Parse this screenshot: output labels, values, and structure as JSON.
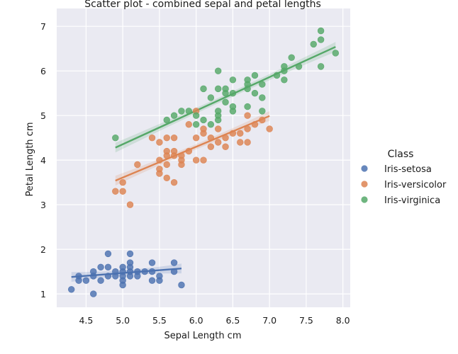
{
  "chart_data": {
    "type": "scatter",
    "title": "Scatter plot - combined sepal and petal lengths",
    "xlabel": "Sepal Length cm",
    "ylabel": "Petal Length cm",
    "xlim": [
      4.1,
      8.1
    ],
    "ylim": [
      0.7,
      7.4
    ],
    "xticks": [
      4.5,
      5.0,
      5.5,
      6.0,
      6.5,
      7.0,
      7.5,
      8.0
    ],
    "xtick_labels": [
      "4.5",
      "5.0",
      "5.5",
      "6.0",
      "6.5",
      "7.0",
      "7.5",
      "8.0"
    ],
    "yticks": [
      1,
      2,
      3,
      4,
      5,
      6,
      7
    ],
    "ytick_labels": [
      "1",
      "2",
      "3",
      "4",
      "5",
      "6",
      "7"
    ],
    "grid": true,
    "legend": {
      "title": "Class",
      "position": "right"
    },
    "series": [
      {
        "name": "Iris-setosa",
        "color": "#4c72b0",
        "points": [
          [
            4.3,
            1.1
          ],
          [
            4.4,
            1.3
          ],
          [
            4.4,
            1.4
          ],
          [
            4.5,
            1.3
          ],
          [
            4.6,
            1.0
          ],
          [
            4.6,
            1.4
          ],
          [
            4.6,
            1.5
          ],
          [
            4.7,
            1.3
          ],
          [
            4.7,
            1.6
          ],
          [
            4.8,
            1.4
          ],
          [
            4.8,
            1.6
          ],
          [
            4.8,
            1.9
          ],
          [
            4.9,
            1.4
          ],
          [
            4.9,
            1.5
          ],
          [
            5.0,
            1.2
          ],
          [
            5.0,
            1.3
          ],
          [
            5.0,
            1.4
          ],
          [
            5.0,
            1.5
          ],
          [
            5.0,
            1.6
          ],
          [
            5.1,
            1.4
          ],
          [
            5.1,
            1.5
          ],
          [
            5.1,
            1.6
          ],
          [
            5.1,
            1.7
          ],
          [
            5.1,
            1.9
          ],
          [
            5.2,
            1.4
          ],
          [
            5.2,
            1.5
          ],
          [
            5.3,
            1.5
          ],
          [
            5.4,
            1.3
          ],
          [
            5.4,
            1.5
          ],
          [
            5.4,
            1.7
          ],
          [
            5.5,
            1.3
          ],
          [
            5.5,
            1.4
          ],
          [
            5.7,
            1.5
          ],
          [
            5.7,
            1.7
          ],
          [
            5.8,
            1.2
          ]
        ],
        "fit": {
          "x": [
            4.3,
            5.8
          ],
          "y": [
            1.38,
            1.57
          ]
        }
      },
      {
        "name": "Iris-versicolor",
        "color": "#dd8452",
        "points": [
          [
            4.9,
            3.3
          ],
          [
            5.0,
            3.3
          ],
          [
            5.0,
            3.5
          ],
          [
            5.1,
            3.0
          ],
          [
            5.2,
            3.9
          ],
          [
            5.4,
            4.5
          ],
          [
            5.5,
            3.7
          ],
          [
            5.5,
            3.8
          ],
          [
            5.5,
            4.0
          ],
          [
            5.5,
            4.4
          ],
          [
            5.6,
            3.6
          ],
          [
            5.6,
            3.9
          ],
          [
            5.6,
            4.1
          ],
          [
            5.6,
            4.2
          ],
          [
            5.6,
            4.5
          ],
          [
            5.7,
            3.5
          ],
          [
            5.7,
            4.1
          ],
          [
            5.7,
            4.2
          ],
          [
            5.7,
            4.5
          ],
          [
            5.8,
            3.9
          ],
          [
            5.8,
            4.0
          ],
          [
            5.8,
            4.1
          ],
          [
            5.9,
            4.2
          ],
          [
            5.9,
            4.8
          ],
          [
            6.0,
            4.0
          ],
          [
            6.0,
            4.5
          ],
          [
            6.0,
            5.1
          ],
          [
            6.1,
            4.0
          ],
          [
            6.1,
            4.6
          ],
          [
            6.1,
            4.7
          ],
          [
            6.2,
            4.3
          ],
          [
            6.2,
            4.5
          ],
          [
            6.3,
            4.4
          ],
          [
            6.3,
            4.7
          ],
          [
            6.4,
            4.3
          ],
          [
            6.4,
            4.5
          ],
          [
            6.5,
            4.6
          ],
          [
            6.6,
            4.4
          ],
          [
            6.6,
            4.6
          ],
          [
            6.7,
            4.4
          ],
          [
            6.7,
            4.7
          ],
          [
            6.7,
            5.0
          ],
          [
            6.8,
            4.8
          ],
          [
            6.9,
            4.9
          ],
          [
            7.0,
            4.7
          ]
        ],
        "fit": {
          "x": [
            4.9,
            7.0
          ],
          "y": [
            3.54,
            4.99
          ]
        }
      },
      {
        "name": "Iris-virginica",
        "color": "#55a868",
        "points": [
          [
            4.9,
            4.5
          ],
          [
            5.6,
            4.9
          ],
          [
            5.7,
            5.0
          ],
          [
            5.8,
            5.1
          ],
          [
            5.9,
            5.1
          ],
          [
            6.0,
            4.8
          ],
          [
            6.0,
            5.0
          ],
          [
            6.1,
            4.9
          ],
          [
            6.1,
            5.6
          ],
          [
            6.2,
            4.8
          ],
          [
            6.2,
            5.4
          ],
          [
            6.3,
            4.9
          ],
          [
            6.3,
            5.0
          ],
          [
            6.3,
            5.1
          ],
          [
            6.3,
            5.6
          ],
          [
            6.3,
            6.0
          ],
          [
            6.4,
            5.3
          ],
          [
            6.4,
            5.5
          ],
          [
            6.4,
            5.6
          ],
          [
            6.5,
            5.1
          ],
          [
            6.5,
            5.2
          ],
          [
            6.5,
            5.5
          ],
          [
            6.5,
            5.8
          ],
          [
            6.7,
            5.2
          ],
          [
            6.7,
            5.6
          ],
          [
            6.7,
            5.7
          ],
          [
            6.7,
            5.8
          ],
          [
            6.8,
            5.5
          ],
          [
            6.8,
            5.9
          ],
          [
            6.9,
            5.1
          ],
          [
            6.9,
            5.4
          ],
          [
            6.9,
            5.7
          ],
          [
            7.1,
            5.9
          ],
          [
            7.2,
            5.8
          ],
          [
            7.2,
            6.0
          ],
          [
            7.2,
            6.1
          ],
          [
            7.3,
            6.3
          ],
          [
            7.4,
            6.1
          ],
          [
            7.6,
            6.6
          ],
          [
            7.7,
            6.1
          ],
          [
            7.7,
            6.7
          ],
          [
            7.7,
            6.9
          ],
          [
            7.9,
            6.4
          ]
        ],
        "fit": {
          "x": [
            4.9,
            7.9
          ],
          "y": [
            4.28,
            6.54
          ]
        }
      }
    ]
  }
}
